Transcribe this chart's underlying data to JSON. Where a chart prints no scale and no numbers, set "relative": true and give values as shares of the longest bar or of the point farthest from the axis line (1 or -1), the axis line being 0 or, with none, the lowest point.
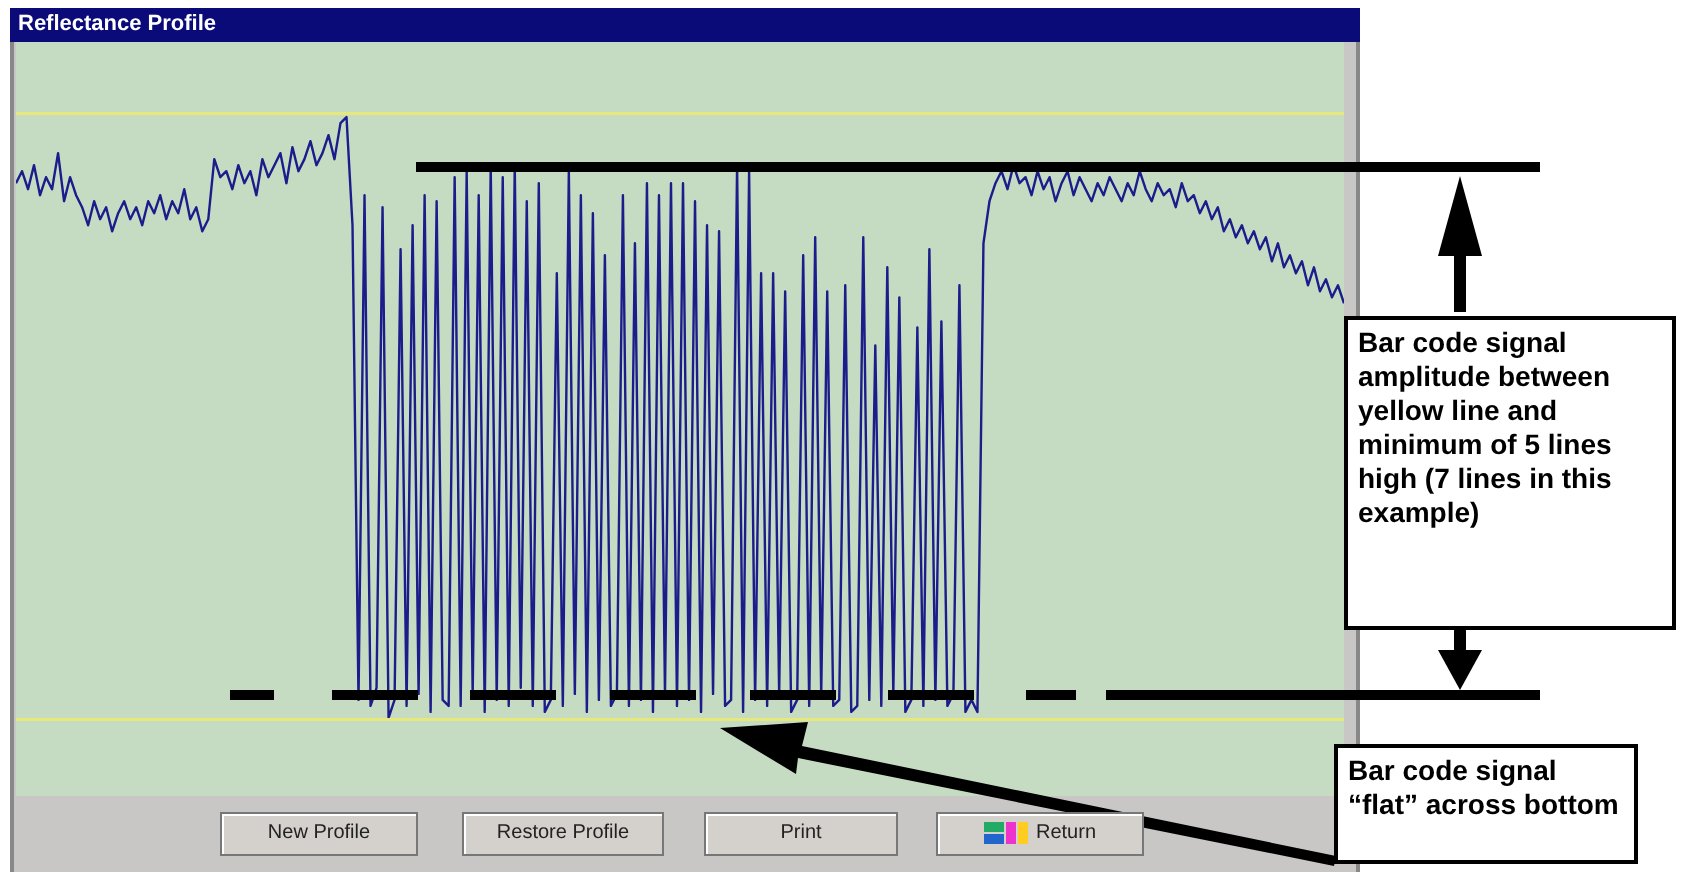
{
  "chart_data": {
    "type": "line",
    "title": "Reflectance Profile",
    "relative": true,
    "color": "#1c1c8a",
    "categories": [
      null,
      null,
      null,
      null,
      null,
      null,
      null,
      null,
      null,
      null,
      null,
      null,
      null,
      null,
      null,
      null,
      null,
      null,
      null,
      null,
      null,
      null,
      null,
      null,
      null,
      null,
      null,
      null,
      null,
      null,
      null,
      null,
      null,
      null,
      null,
      null,
      null,
      null,
      null,
      null,
      null,
      null,
      null,
      null,
      null,
      null,
      null,
      null,
      null,
      null,
      null,
      null,
      null,
      null,
      null,
      null,
      null,
      null,
      null,
      null,
      null,
      null,
      null,
      null,
      null,
      null,
      null,
      null,
      null,
      null,
      null,
      null,
      null,
      null,
      null,
      null,
      null,
      null,
      null,
      null,
      null,
      null,
      null,
      null,
      null,
      null,
      null,
      null,
      null,
      null,
      null,
      null,
      null,
      null,
      null,
      null,
      null,
      null,
      null,
      null,
      null,
      null,
      null,
      null,
      null,
      null,
      null,
      null,
      null,
      null,
      null,
      null,
      null,
      null,
      null,
      null,
      null,
      null,
      null,
      null,
      null,
      null,
      null,
      null,
      null,
      null,
      null,
      null,
      null,
      null,
      null,
      null,
      null,
      null,
      null,
      null,
      null,
      null,
      null,
      null,
      null,
      null,
      null,
      null,
      null,
      null,
      null,
      null,
      null,
      null,
      null,
      null,
      null,
      null,
      null,
      null,
      null,
      null,
      null,
      null,
      null,
      null,
      null,
      null,
      null,
      null,
      null,
      null,
      null,
      null,
      null,
      null,
      null,
      null,
      null,
      null,
      null,
      null,
      null,
      null,
      null,
      null,
      null,
      null,
      null,
      null,
      null,
      null,
      null,
      null,
      null,
      null,
      null,
      null,
      null,
      null,
      null,
      null,
      null,
      null,
      null,
      null,
      null,
      null,
      null,
      null,
      null,
      null,
      null,
      null,
      null,
      null,
      null,
      null,
      null,
      null,
      null,
      null,
      null,
      null,
      null,
      null
    ],
    "values": [
      0.89,
      0.91,
      0.88,
      0.92,
      0.87,
      0.9,
      0.88,
      0.94,
      0.86,
      0.9,
      0.87,
      0.85,
      0.82,
      0.86,
      0.83,
      0.85,
      0.81,
      0.84,
      0.86,
      0.83,
      0.85,
      0.82,
      0.86,
      0.84,
      0.87,
      0.83,
      0.86,
      0.84,
      0.88,
      0.83,
      0.85,
      0.81,
      0.83,
      0.93,
      0.9,
      0.91,
      0.88,
      0.92,
      0.89,
      0.91,
      0.87,
      0.93,
      0.9,
      0.92,
      0.94,
      0.89,
      0.95,
      0.91,
      0.93,
      0.96,
      0.92,
      0.94,
      0.97,
      0.93,
      0.99,
      1.0,
      0.82,
      0.03,
      0.87,
      0.02,
      0.05,
      0.85,
      0,
      0.03,
      0.78,
      0.02,
      0.82,
      0.04,
      0.87,
      0.01,
      0.86,
      0.03,
      0.02,
      0.9,
      0.02,
      0.91,
      0.04,
      0.87,
      0.01,
      0.92,
      0.03,
      0.9,
      0.02,
      0.92,
      0.05,
      0.86,
      0.02,
      0.89,
      0.01,
      0.03,
      0.74,
      0.02,
      0.91,
      0.04,
      0.87,
      0.01,
      0.84,
      0.03,
      0.77,
      0.02,
      0.04,
      0.87,
      0.02,
      0.79,
      0.03,
      0.89,
      0.01,
      0.87,
      0.04,
      0.89,
      0.02,
      0.89,
      0.03,
      0.86,
      0.01,
      0.82,
      0.04,
      0.81,
      0.02,
      0.03,
      0.92,
      0.01,
      0.91,
      0.03,
      0.74,
      0.02,
      0.74,
      0.04,
      0.71,
      0.01,
      0.03,
      0.77,
      0.02,
      0.8,
      0.04,
      0.71,
      0.02,
      0.03,
      0.72,
      0.01,
      0.02,
      0.8,
      0.03,
      0.62,
      0.02,
      0.75,
      0.04,
      0.7,
      0.01,
      0.03,
      0.65,
      0.02,
      0.78,
      0.03,
      0.66,
      0.02,
      0.04,
      0.72,
      0.01,
      0.03,
      0.01,
      0.79,
      0.86,
      0.89,
      0.91,
      0.88,
      0.92,
      0.89,
      0.9,
      0.87,
      0.91,
      0.88,
      0.9,
      0.86,
      0.89,
      0.91,
      0.87,
      0.9,
      0.88,
      0.86,
      0.89,
      0.87,
      0.9,
      0.88,
      0.86,
      0.89,
      0.87,
      0.91,
      0.88,
      0.86,
      0.89,
      0.87,
      0.88,
      0.85,
      0.89,
      0.86,
      0.87,
      0.84,
      0.86,
      0.83,
      0.85,
      0.81,
      0.83,
      0.8,
      0.82,
      0.79,
      0.81,
      0.78,
      0.8,
      0.76,
      0.79,
      0.75,
      0.77,
      0.74,
      0.76,
      0.72,
      0.75,
      0.71,
      0.73,
      0.7,
      0.72,
      0.69
    ],
    "annotations": [
      "Bar code signal amplitude between yellow line and minimum of 5 lines high (7 lines in this example)",
      "Bar code signal “flat” across bottom",
      "New Profile",
      "Restore Profile",
      "Print",
      "Return"
    ]
  }
}
